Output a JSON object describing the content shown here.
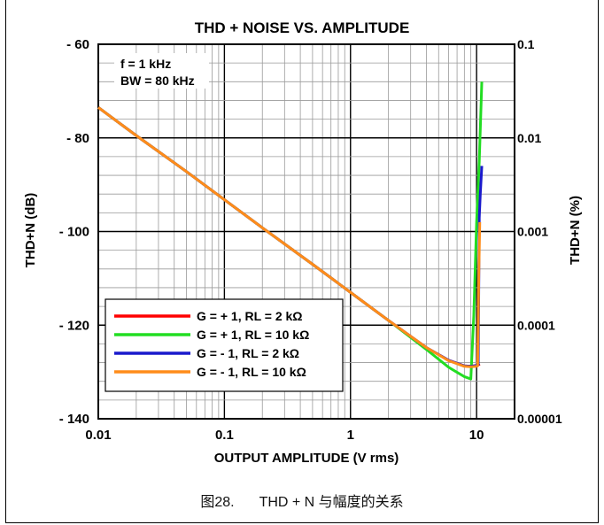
{
  "chart_data": {
    "type": "line",
    "title": "THD + NOISE VS. AMPLITUDE",
    "xlabel": "OUTPUT AMPLITUDE (V rms)",
    "ylabel": "THD+N (dB)",
    "y2label": "THD+N (%)",
    "x_scale": "log",
    "xlim": [
      0.01,
      20
    ],
    "ylim": [
      -140,
      -60
    ],
    "x_ticks": [
      "0.01",
      "0.1",
      "1",
      "10"
    ],
    "y_ticks": [
      "- 140",
      "- 120",
      "- 100",
      "- 80",
      "- 60"
    ],
    "y2_ticks": [
      "0.00001",
      "0.0001",
      "0.001",
      "0.01",
      "0.1"
    ],
    "grid": true,
    "annotations": [
      "f = 1 kHz",
      "BW = 80 kHz"
    ],
    "legend_position": "bottom-left",
    "series": [
      {
        "name": "G = + 1, RL = 2 kΩ",
        "color": "#ff0000",
        "x": [
          0.01,
          0.02,
          0.05,
          0.1,
          0.2,
          0.5,
          1,
          2,
          4,
          6,
          8,
          9,
          10,
          10.3,
          10.6
        ],
        "y": [
          -73.5,
          -79.5,
          -87.2,
          -93.2,
          -99.2,
          -107,
          -113,
          -119,
          -124.8,
          -127.5,
          -128.7,
          -128.8,
          -128.6,
          -128.5,
          -128.3
        ]
      },
      {
        "name": "G = + 1, RL = 10 kΩ",
        "color": "#22dd22",
        "x": [
          0.01,
          0.02,
          0.05,
          0.1,
          0.2,
          0.5,
          1,
          2,
          4,
          6,
          8,
          9,
          9.5,
          10,
          10.5,
          11
        ],
        "y": [
          -73.5,
          -79.5,
          -87.2,
          -93.2,
          -99.2,
          -107,
          -113,
          -119,
          -125.2,
          -129,
          -131,
          -131.5,
          -118,
          -98,
          -85,
          -68
        ]
      },
      {
        "name": "G = - 1, RL = 2 kΩ",
        "color": "#1a1acc",
        "x": [
          0.01,
          0.02,
          0.05,
          0.1,
          0.2,
          0.5,
          1,
          2,
          4,
          6,
          8,
          9,
          10,
          10.3,
          10.5,
          10.7,
          11
        ],
        "y": [
          -73.5,
          -79.5,
          -87.2,
          -93.2,
          -99.2,
          -107,
          -113,
          -119,
          -124.8,
          -127.5,
          -128.7,
          -128.8,
          -128.6,
          -128.5,
          -97,
          -92,
          -86
        ]
      },
      {
        "name": "G = - 1, RL = 10 kΩ",
        "color": "#ff8c1a",
        "x": [
          0.01,
          0.02,
          0.05,
          0.1,
          0.2,
          0.5,
          1,
          2,
          4,
          6,
          8,
          9,
          10,
          10.2,
          10.4,
          10.6
        ],
        "y": [
          -73.5,
          -79.5,
          -87.2,
          -93.2,
          -99.2,
          -107,
          -113,
          -119,
          -124.8,
          -127.6,
          -128.8,
          -128.9,
          -128.8,
          -128.7,
          -110,
          -98
        ]
      }
    ]
  },
  "caption": {
    "number": "图28.",
    "text": "THD + N 与幅度的关系"
  }
}
